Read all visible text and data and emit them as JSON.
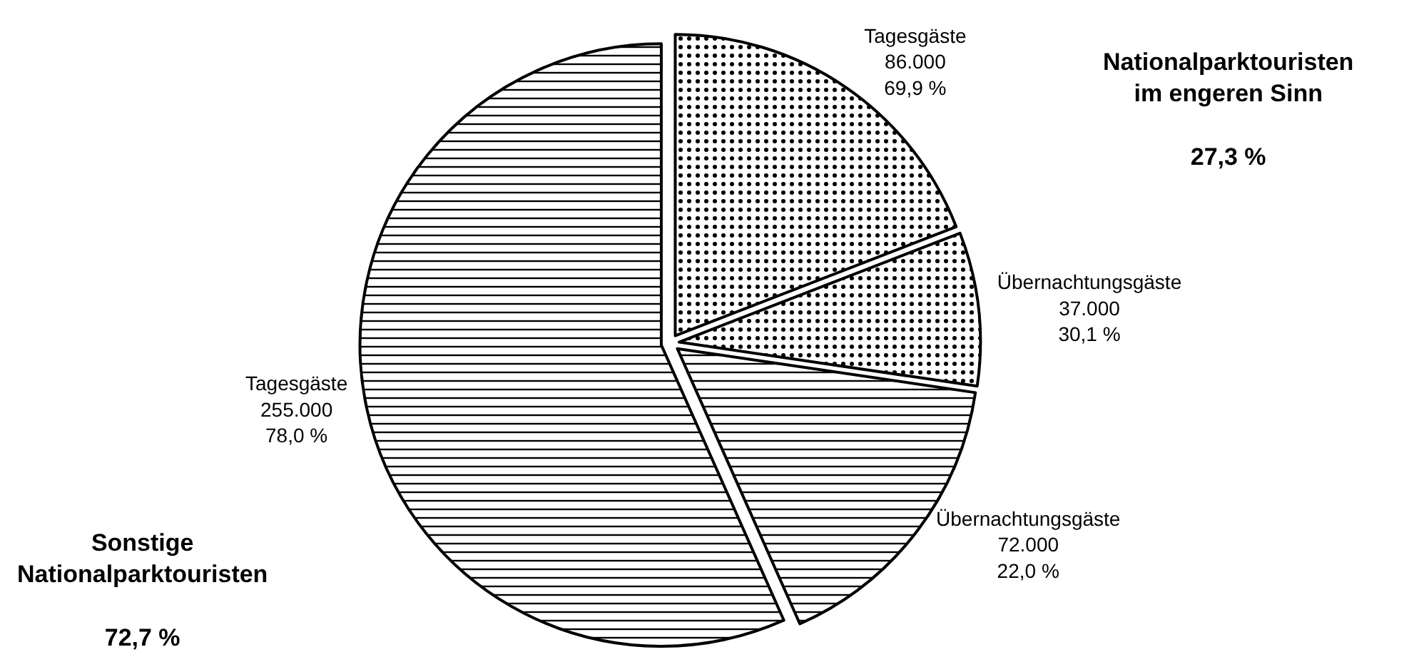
{
  "chart_data": {
    "type": "pie",
    "categories": [
      "Tagesgäste",
      "Übernachtungsgäste",
      "Übernachtungsgäste",
      "Tagesgäste"
    ],
    "values": [
      86000,
      37000,
      72000,
      255000
    ],
    "value_labels": [
      "86.000\n69,9 %",
      "37.000\n30,1 %",
      "72.000\n22,0 %",
      "255.000\n78,0 %"
    ],
    "colors": [
      "#000000",
      "#000000",
      "#000000",
      "#000000"
    ],
    "annotations": [
      "Nationalparktouristen\nim engeren Sinn\n\n27,3 %",
      "Sonstige\nNationalparktouristen\n\n72,7 %"
    ],
    "legend": false
  }
}
